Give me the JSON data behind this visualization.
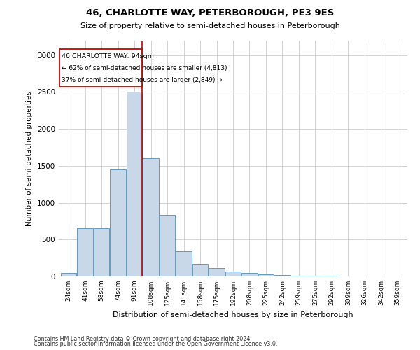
{
  "title": "46, CHARLOTTE WAY, PETERBOROUGH, PE3 9ES",
  "subtitle": "Size of property relative to semi-detached houses in Peterborough",
  "xlabel": "Distribution of semi-detached houses by size in Peterborough",
  "ylabel": "Number of semi-detached properties",
  "footer_line1": "Contains HM Land Registry data © Crown copyright and database right 2024.",
  "footer_line2": "Contains public sector information licensed under the Open Government Licence v3.0.",
  "annotation_title": "46 CHARLOTTE WAY: 94sqm",
  "annotation_line1": "← 62% of semi-detached houses are smaller (4,813)",
  "annotation_line2": "37% of semi-detached houses are larger (2,849) →",
  "property_bin_index": 4,
  "bar_color": "#c8d8e8",
  "bar_edge_color": "#6699bb",
  "marker_color": "#cc0000",
  "categories": [
    "24sqm",
    "41sqm",
    "58sqm",
    "74sqm",
    "91sqm",
    "108sqm",
    "125sqm",
    "141sqm",
    "158sqm",
    "175sqm",
    "192sqm",
    "208sqm",
    "225sqm",
    "242sqm",
    "259sqm",
    "275sqm",
    "292sqm",
    "309sqm",
    "326sqm",
    "342sqm",
    "359sqm"
  ],
  "values": [
    50,
    650,
    650,
    1450,
    2500,
    1600,
    830,
    340,
    170,
    110,
    70,
    50,
    30,
    20,
    10,
    5,
    5,
    3,
    2,
    2,
    2
  ],
  "ylim": [
    0,
    3200
  ],
  "yticks": [
    0,
    500,
    1000,
    1500,
    2000,
    2500,
    3000
  ]
}
